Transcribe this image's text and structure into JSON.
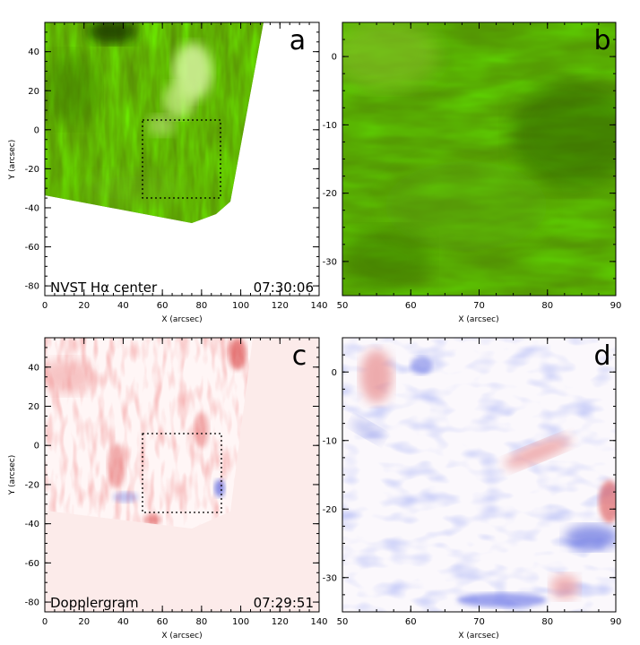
{
  "panels": [
    {
      "id": "a",
      "letter": "a",
      "kind": "halpha",
      "caption_left": "NVST Hα center",
      "caption_right": "07:30:06",
      "xlabel": "X (arcsec)",
      "ylabel": "Y (arcsec)",
      "xlim": [
        0,
        140
      ],
      "ylim": [
        -85,
        55
      ],
      "xticks": [
        0,
        20,
        40,
        60,
        80,
        100,
        120,
        140
      ],
      "yticks": [
        -80,
        -60,
        -40,
        -20,
        0,
        20,
        40
      ],
      "subregion_box": {
        "x": [
          50,
          90
        ],
        "y": [
          -35,
          5
        ]
      }
    },
    {
      "id": "b",
      "letter": "b",
      "kind": "halpha-zoom",
      "xlabel": "X (arcsec)",
      "ylabel": "",
      "xlim": [
        50,
        90
      ],
      "ylim": [
        -35,
        5
      ],
      "xticks": [
        50,
        60,
        70,
        80,
        90
      ],
      "yticks": [
        -30,
        -20,
        -10,
        0
      ]
    },
    {
      "id": "c",
      "letter": "c",
      "kind": "doppler",
      "caption_left": "Dopplergram",
      "caption_right": "07:29:51",
      "xlabel": "X (arcsec)",
      "ylabel": "Y (arcsec)",
      "xlim": [
        0,
        140
      ],
      "ylim": [
        -85,
        55
      ],
      "xticks": [
        0,
        20,
        40,
        60,
        80,
        100,
        120,
        140
      ],
      "yticks": [
        -80,
        -60,
        -40,
        -20,
        0,
        20,
        40
      ],
      "subregion_box": {
        "x": [
          50,
          90
        ],
        "y": [
          -35,
          5
        ]
      }
    },
    {
      "id": "d",
      "letter": "d",
      "kind": "doppler-zoom",
      "xlabel": "X (arcsec)",
      "ylabel": "",
      "xlim": [
        50,
        90
      ],
      "ylim": [
        -35,
        5
      ],
      "xticks": [
        50,
        60,
        70,
        80,
        90
      ],
      "yticks": [
        -30,
        -20,
        -10,
        0
      ]
    }
  ],
  "colors": {
    "halpha_dark": "#2f5a00",
    "halpha_mid": "#5a9a0a",
    "halpha_bright": "#d8f2a0",
    "doppler_bg": "#fcebea",
    "doppler_red": "#e04848",
    "doppler_blue": "#4a5ee0"
  }
}
